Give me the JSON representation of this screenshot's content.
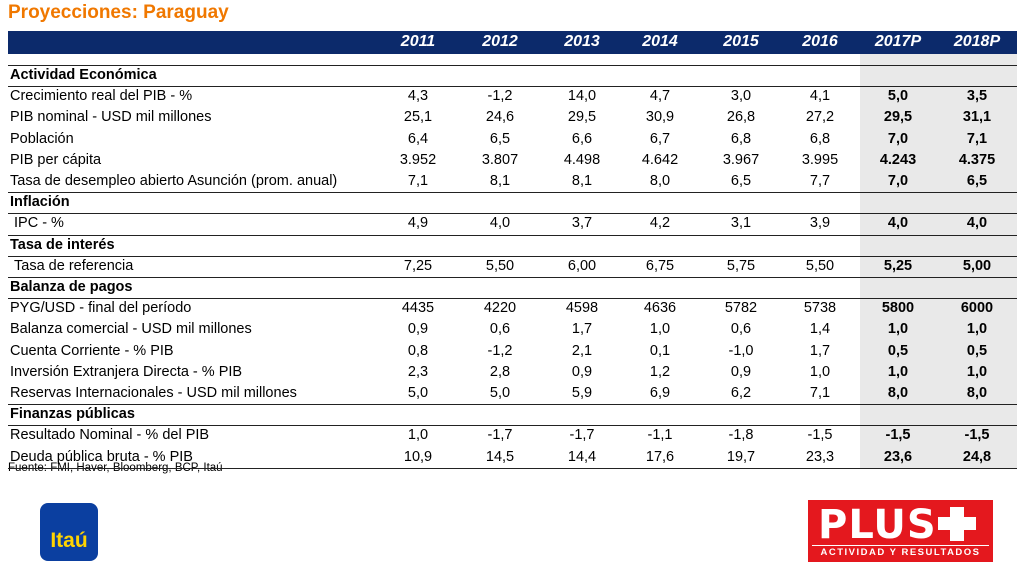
{
  "title": "Proyecciones: Paraguay",
  "table": {
    "columns": [
      "2011",
      "2012",
      "2013",
      "2014",
      "2015",
      "2016",
      "2017P",
      "2018P"
    ],
    "sections": [
      {
        "name": "Actividad Económica",
        "rows": [
          {
            "label": "Crecimiento real del PIB - %",
            "values": [
              "4,3",
              "-1,2",
              "14,0",
              "4,7",
              "3,0",
              "4,1",
              "5,0",
              "3,5"
            ]
          },
          {
            "label": "PIB nominal - USD mil millones",
            "values": [
              "25,1",
              "24,6",
              "29,5",
              "30,9",
              "26,8",
              "27,2",
              "29,5",
              "31,1"
            ]
          },
          {
            "label": "Población",
            "values": [
              "6,4",
              "6,5",
              "6,6",
              "6,7",
              "6,8",
              "6,8",
              "7,0",
              "7,1"
            ]
          },
          {
            "label": "PIB per cápita",
            "values": [
              "3.952",
              "3.807",
              "4.498",
              "4.642",
              "3.967",
              "3.995",
              "4.243",
              "4.375"
            ]
          },
          {
            "label": "Tasa de desempleo abierto Asunción (prom. anual)",
            "values": [
              "7,1",
              "8,1",
              "8,1",
              "8,0",
              "6,5",
              "7,7",
              "7,0",
              "6,5"
            ]
          }
        ]
      },
      {
        "name": "Inflación",
        "rows": [
          {
            "label": "IPC - %",
            "values": [
              "4,9",
              "4,0",
              "3,7",
              "4,2",
              "3,1",
              "3,9",
              "4,0",
              "4,0"
            ]
          }
        ]
      },
      {
        "name": "Tasa de interés",
        "rows": [
          {
            "label": "Tasa de referencia",
            "values": [
              "7,25",
              "5,50",
              "6,00",
              "6,75",
              "5,75",
              "5,50",
              "5,25",
              "5,00"
            ]
          }
        ]
      },
      {
        "name": "Balanza de pagos",
        "rows": [
          {
            "label": "PYG/USD - final del período",
            "values": [
              "4435",
              "4220",
              "4598",
              "4636",
              "5782",
              "5738",
              "5800",
              "6000"
            ]
          },
          {
            "label": "Balanza comercial - USD mil millones",
            "values": [
              "0,9",
              "0,6",
              "1,7",
              "1,0",
              "0,6",
              "1,4",
              "1,0",
              "1,0"
            ]
          },
          {
            "label": "Cuenta Corriente - % PIB",
            "values": [
              "0,8",
              "-1,2",
              "2,1",
              "0,1",
              "-1,0",
              "1,7",
              "0,5",
              "0,5"
            ]
          },
          {
            "label": "Inversión Extranjera Directa - % PIB",
            "values": [
              "2,3",
              "2,8",
              "0,9",
              "1,2",
              "0,9",
              "1,0",
              "1,0",
              "1,0"
            ]
          },
          {
            "label": "Reservas Internacionales - USD mil millones",
            "values": [
              "5,0",
              "5,0",
              "5,9",
              "6,9",
              "6,2",
              "7,1",
              "8,0",
              "8,0"
            ]
          }
        ]
      },
      {
        "name": "Finanzas públicas",
        "rows": [
          {
            "label": "Resultado Nominal - % del PIB",
            "values": [
              "1,0",
              "-1,7",
              "-1,7",
              "-1,1",
              "-1,8",
              "-1,5",
              "-1,5",
              "-1,5"
            ]
          },
          {
            "label": "Deuda pública bruta - % PIB",
            "values": [
              "10,9",
              "14,5",
              "14,4",
              "17,6",
              "19,7",
              "23,3",
              "23,6",
              "24,8"
            ]
          }
        ]
      }
    ]
  },
  "source": "Fuente: FMI, Haver, Bloomberg, BCP, Itaú",
  "logo_itau": "Itaú",
  "logo_plus": {
    "text": "PLUS",
    "tagline": "ACTIVIDAD Y RESULTADOS"
  }
}
